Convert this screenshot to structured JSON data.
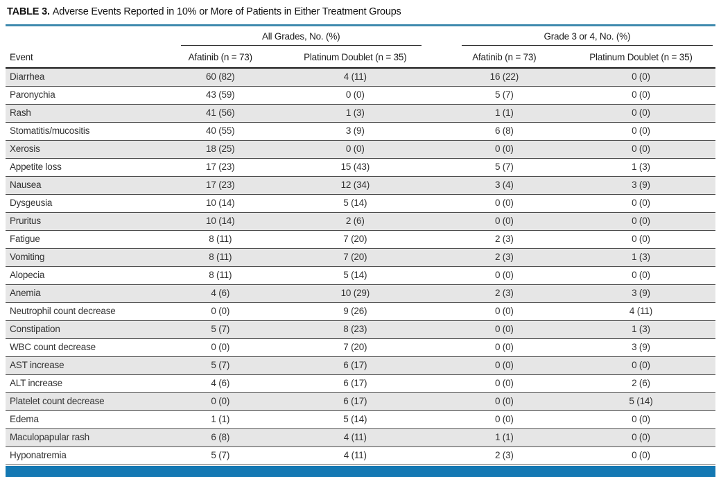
{
  "title": {
    "label": "TABLE 3.",
    "caption": "Adverse Events Reported in 10% or More of Patients in Either Treatment Groups"
  },
  "table": {
    "group_headers": [
      "All Grades, No. (%)",
      "Grade 3 or 4, No. (%)"
    ],
    "column_headers": [
      "Event",
      "Afatinib (n = 73)",
      "Platinum Doublet (n = 35)",
      "Afatinib (n = 73)",
      "Platinum Doublet (n = 35)"
    ],
    "rows": [
      {
        "event": "Diarrhea",
        "values": [
          "60 (82)",
          "4 (11)",
          "16 (22)",
          "0 (0)"
        ]
      },
      {
        "event": "Paronychia",
        "values": [
          "43 (59)",
          "0 (0)",
          "5 (7)",
          "0 (0)"
        ]
      },
      {
        "event": "Rash",
        "values": [
          "41 (56)",
          "1 (3)",
          "1 (1)",
          "0 (0)"
        ]
      },
      {
        "event": "Stomatitis/mucositis",
        "values": [
          "40 (55)",
          "3 (9)",
          "6 (8)",
          "0 (0)"
        ]
      },
      {
        "event": "Xerosis",
        "values": [
          "18 (25)",
          "0 (0)",
          "0 (0)",
          "0 (0)"
        ]
      },
      {
        "event": "Appetite loss",
        "values": [
          "17 (23)",
          "15 (43)",
          "5 (7)",
          "1 (3)"
        ]
      },
      {
        "event": "Nausea",
        "values": [
          "17 (23)",
          "12 (34)",
          "3 (4)",
          "3 (9)"
        ]
      },
      {
        "event": "Dysgeusia",
        "values": [
          "10 (14)",
          "5 (14)",
          "0 (0)",
          "0 (0)"
        ]
      },
      {
        "event": "Pruritus",
        "values": [
          "10 (14)",
          "2 (6)",
          "0 (0)",
          "0 (0)"
        ]
      },
      {
        "event": "Fatigue",
        "values": [
          "8 (11)",
          "7 (20)",
          "2 (3)",
          "0 (0)"
        ]
      },
      {
        "event": "Vomiting",
        "values": [
          "8 (11)",
          "7 (20)",
          "2 (3)",
          "1 (3)"
        ]
      },
      {
        "event": "Alopecia",
        "values": [
          "8 (11)",
          "5 (14)",
          "0 (0)",
          "0 (0)"
        ]
      },
      {
        "event": "Anemia",
        "values": [
          "4 (6)",
          "10 (29)",
          "2 (3)",
          "3 (9)"
        ]
      },
      {
        "event": "Neutrophil count decrease",
        "values": [
          "0 (0)",
          "9 (26)",
          "0 (0)",
          "4 (11)"
        ]
      },
      {
        "event": "Constipation",
        "values": [
          "5 (7)",
          "8 (23)",
          "0 (0)",
          "1 (3)"
        ]
      },
      {
        "event": "WBC count decrease",
        "values": [
          "0 (0)",
          "7 (20)",
          "0 (0)",
          "3 (9)"
        ]
      },
      {
        "event": "AST increase",
        "values": [
          "5 (7)",
          "6 (17)",
          "0 (0)",
          "0 (0)"
        ]
      },
      {
        "event": "ALT increase",
        "values": [
          "4 (6)",
          "6 (17)",
          "0 (0)",
          "2 (6)"
        ]
      },
      {
        "event": "Platelet count decrease",
        "values": [
          "0 (0)",
          "6 (17)",
          "0 (0)",
          "5 (14)"
        ]
      },
      {
        "event": "Edema",
        "values": [
          "1 (1)",
          "5 (14)",
          "0 (0)",
          "0 (0)"
        ]
      },
      {
        "event": "Maculopapular rash",
        "values": [
          "6 (8)",
          "4 (11)",
          "1 (1)",
          "0 (0)"
        ]
      },
      {
        "event": "Hyponatremia",
        "values": [
          "5 (7)",
          "4 (11)",
          "2 (3)",
          "0 (0)"
        ]
      }
    ]
  },
  "colors": {
    "top_rule_teal": "#3e89ad",
    "footer_bar_blue": "#1478b3",
    "row_stripe_gray": "#e6e6e6"
  }
}
